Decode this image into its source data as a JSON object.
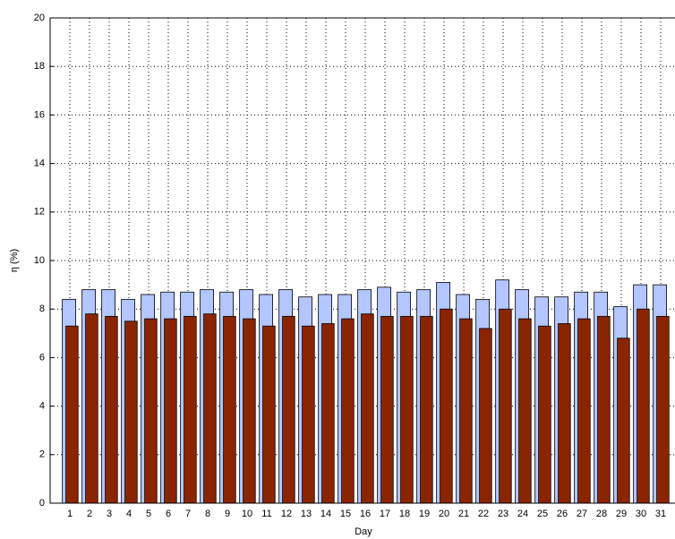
{
  "chart_data": {
    "type": "bar",
    "x": [
      1,
      2,
      3,
      4,
      5,
      6,
      7,
      8,
      9,
      10,
      11,
      12,
      13,
      14,
      15,
      16,
      17,
      18,
      19,
      20,
      21,
      22,
      23,
      24,
      25,
      26,
      27,
      28,
      29,
      30,
      31
    ],
    "series": [
      {
        "color": "#b3c6ff",
        "values": [
          8.4,
          8.8,
          8.8,
          8.4,
          8.6,
          8.7,
          8.7,
          8.8,
          8.7,
          8.8,
          8.6,
          8.8,
          8.5,
          8.6,
          8.6,
          8.8,
          8.9,
          8.7,
          8.8,
          9.1,
          8.6,
          8.4,
          9.2,
          8.8,
          8.5,
          8.5,
          8.7,
          8.7,
          8.1,
          9.0,
          9.0
        ]
      },
      {
        "color": "#8b2500",
        "values": [
          7.3,
          7.8,
          7.7,
          7.5,
          7.6,
          7.6,
          7.7,
          7.8,
          7.7,
          7.6,
          7.3,
          7.7,
          7.3,
          7.4,
          7.6,
          7.8,
          7.7,
          7.7,
          7.7,
          8.0,
          7.6,
          7.2,
          8.0,
          7.6,
          7.3,
          7.4,
          7.6,
          7.7,
          6.8,
          8.0,
          7.7
        ]
      }
    ],
    "xlabel": "Day",
    "ylabel": "η (%)",
    "xlim": [
      0,
      32
    ],
    "xticks": [
      1,
      2,
      3,
      4,
      5,
      6,
      7,
      8,
      9,
      10,
      11,
      12,
      13,
      14,
      15,
      16,
      17,
      18,
      19,
      20,
      21,
      22,
      23,
      24,
      25,
      26,
      27,
      28,
      29,
      30,
      31
    ],
    "ylim": [
      0,
      20
    ],
    "yticks": [
      0,
      2,
      4,
      6,
      8,
      10,
      12,
      14,
      16,
      18,
      20
    ],
    "grid": true
  }
}
